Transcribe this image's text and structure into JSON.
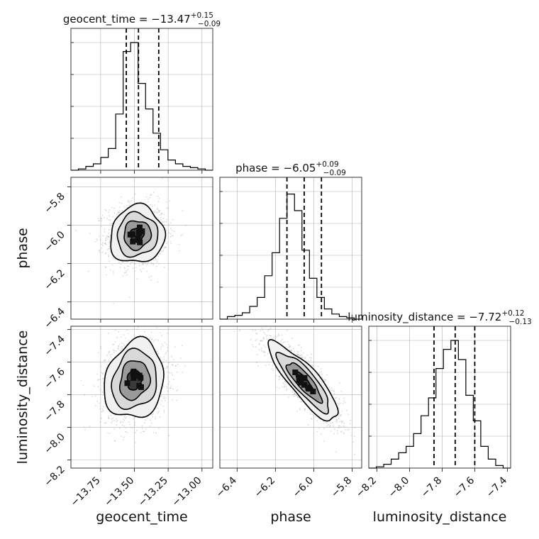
{
  "chart_data": {
    "type": "corner",
    "parameters": [
      {
        "name": "geocent_time",
        "axis_label": "geocent_time",
        "range": [
          -13.97,
          -12.92
        ],
        "ticks": [
          -13.75,
          -13.5,
          -13.25,
          -13.0
        ],
        "tick_labels": [
          "−13.75",
          "−13.50",
          "−13.25",
          "−13.00"
        ],
        "title_main": "geocent_time = −13.47",
        "title_sup": "+0.15",
        "title_sub": "−0.09",
        "median": -13.47,
        "q_low": -13.56,
        "q_high": -13.32,
        "hist_heights": [
          0.0,
          0.01,
          0.03,
          0.05,
          0.1,
          0.17,
          0.44,
          0.93,
          1.0,
          0.68,
          0.48,
          0.29,
          0.16,
          0.08,
          0.05,
          0.03,
          0.02,
          0.01,
          0.0
        ]
      },
      {
        "name": "phase",
        "axis_label": "phase",
        "range": [
          -6.49,
          -5.75
        ],
        "ticks": [
          -6.4,
          -6.2,
          -6.0,
          -5.8
        ],
        "tick_labels": [
          "−6.4",
          "−6.2",
          "−6.0",
          "−5.8"
        ],
        "title_main": "phase = −6.05",
        "title_sup": "+0.09",
        "title_sub": "−0.09",
        "median": -6.05,
        "q_low": -6.14,
        "q_high": -5.96,
        "hist_heights": [
          0.0,
          0.02,
          0.03,
          0.05,
          0.1,
          0.17,
          0.34,
          0.52,
          0.79,
          0.98,
          0.85,
          0.54,
          0.32,
          0.17,
          0.08,
          0.04,
          0.02,
          0.01,
          0.0
        ]
      },
      {
        "name": "luminosity_distance",
        "axis_label": "luminosity_distance",
        "range": [
          -8.25,
          -7.38
        ],
        "ticks": [
          -8.2,
          -8.0,
          -7.8,
          -7.6,
          -7.4
        ],
        "tick_labels": [
          "−8.2",
          "−8.0",
          "−7.8",
          "−7.6",
          "−7.4"
        ],
        "title_main": "luminosity_distance = −7.72",
        "title_sup": "+0.12",
        "title_sub": "−0.13",
        "median": -7.72,
        "q_low": -7.85,
        "q_high": -7.6,
        "hist_heights": [
          0.0,
          0.01,
          0.03,
          0.07,
          0.12,
          0.17,
          0.27,
          0.41,
          0.55,
          0.78,
          0.93,
          1.0,
          0.85,
          0.57,
          0.37,
          0.17,
          0.07,
          0.02,
          0.0
        ]
      }
    ],
    "pairs": [
      {
        "x": "geocent_time",
        "y": "phase",
        "center": [
          -13.48,
          -6.05
        ],
        "sigma": [
          0.1,
          0.075
        ],
        "corr": 0.05
      },
      {
        "x": "geocent_time",
        "y": "luminosity_distance",
        "center": [
          -13.5,
          -7.71
        ],
        "sigma": [
          0.11,
          0.12
        ],
        "corr": 0.15
      },
      {
        "x": "phase",
        "y": "luminosity_distance",
        "center": [
          -6.05,
          -7.72
        ],
        "sigma": [
          0.09,
          0.12
        ],
        "corr": -0.85
      }
    ],
    "contour_levels_sigma": [
      0.5,
      1.0,
      1.5,
      2.0
    ],
    "grid": true
  },
  "colors": {
    "ink": "#000000",
    "grid": "#b0b0b0",
    "points": "#7a7a7a",
    "frame": "#222222"
  }
}
